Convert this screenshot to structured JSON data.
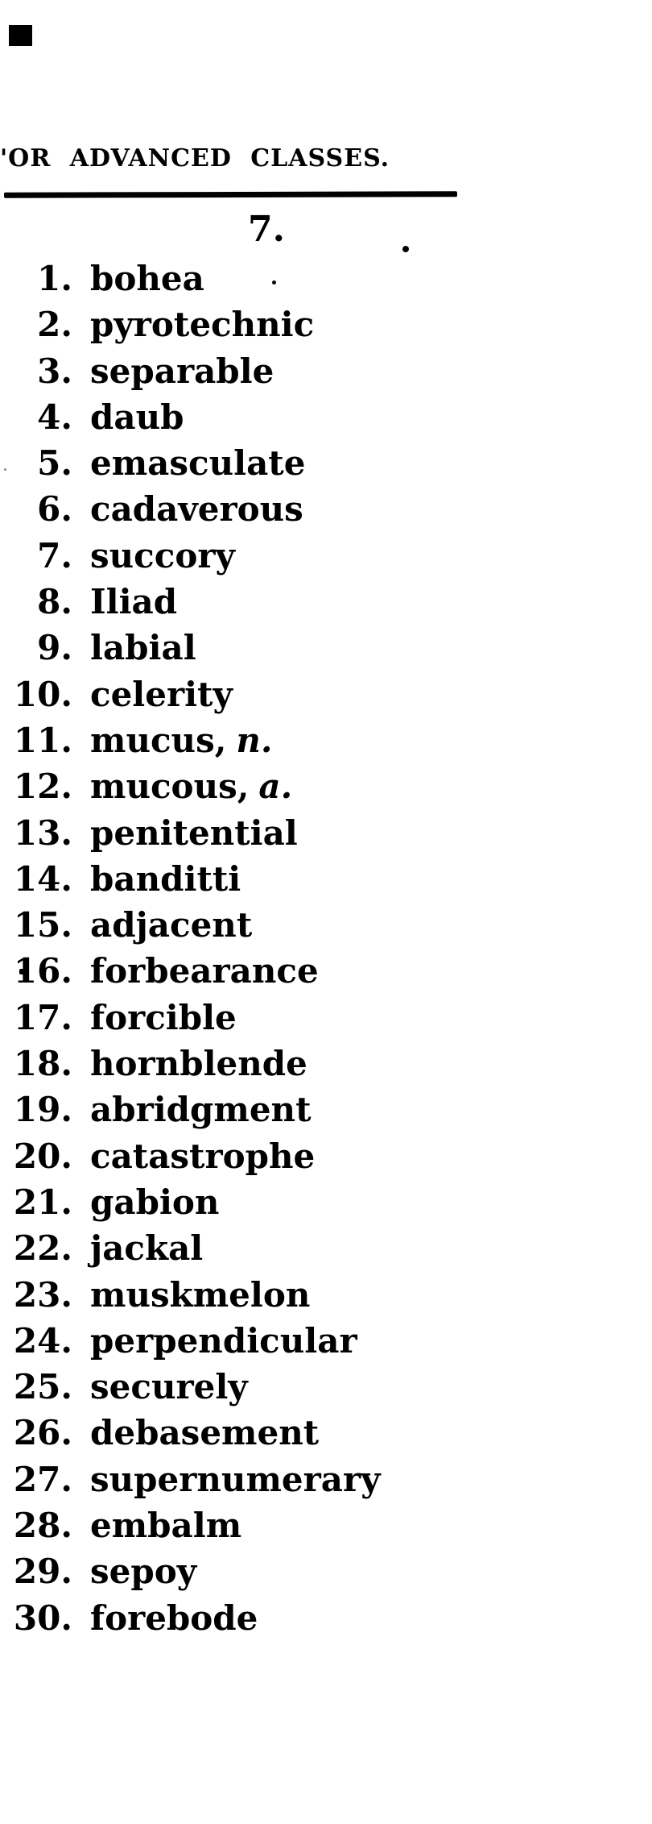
{
  "page": {
    "header": "'OR ADVANCED CLASSES.",
    "section_number": "7."
  },
  "colors": {
    "ink": "#000000",
    "paper": "#ffffff"
  },
  "list": {
    "items": [
      {
        "num": "1.",
        "word": "bohea",
        "note": ""
      },
      {
        "num": "2.",
        "word": "pyrotechnic",
        "note": ""
      },
      {
        "num": "3.",
        "word": "separable",
        "note": ""
      },
      {
        "num": "4.",
        "word": "daub",
        "note": ""
      },
      {
        "num": "5.",
        "word": "emasculate",
        "note": ""
      },
      {
        "num": "6.",
        "word": "cadaverous",
        "note": ""
      },
      {
        "num": "7.",
        "word": "succory",
        "note": ""
      },
      {
        "num": "8.",
        "word": "Iliad",
        "note": ""
      },
      {
        "num": "9.",
        "word": "labial",
        "note": ""
      },
      {
        "num": "10.",
        "word": "celerity",
        "note": ""
      },
      {
        "num": "11.",
        "word": "mucus,",
        "note": "n."
      },
      {
        "num": "12.",
        "word": "mucous,",
        "note": "a."
      },
      {
        "num": "13.",
        "word": "penitential",
        "note": ""
      },
      {
        "num": "14.",
        "word": "banditti",
        "note": ""
      },
      {
        "num": "15.",
        "word": "adjacent",
        "note": ""
      },
      {
        "num": "16.",
        "word": "forbearance",
        "note": ""
      },
      {
        "num": "17.",
        "word": "forcible",
        "note": ""
      },
      {
        "num": "18.",
        "word": "hornblende",
        "note": ""
      },
      {
        "num": "19.",
        "word": "abridgment",
        "note": ""
      },
      {
        "num": "20.",
        "word": "catastrophe",
        "note": ""
      },
      {
        "num": "21.",
        "word": "gabion",
        "note": ""
      },
      {
        "num": "22.",
        "word": "jackal",
        "note": ""
      },
      {
        "num": "23.",
        "word": "muskmelon",
        "note": ""
      },
      {
        "num": "24.",
        "word": "perpendicular",
        "note": ""
      },
      {
        "num": "25.",
        "word": "securely",
        "note": ""
      },
      {
        "num": "26.",
        "word": "debasement",
        "note": ""
      },
      {
        "num": "27.",
        "word": "supernumerary",
        "note": ""
      },
      {
        "num": "28.",
        "word": "embalm",
        "note": ""
      },
      {
        "num": "29.",
        "word": "sepoy",
        "note": ""
      },
      {
        "num": "30.",
        "word": "forebode",
        "note": ""
      }
    ]
  }
}
